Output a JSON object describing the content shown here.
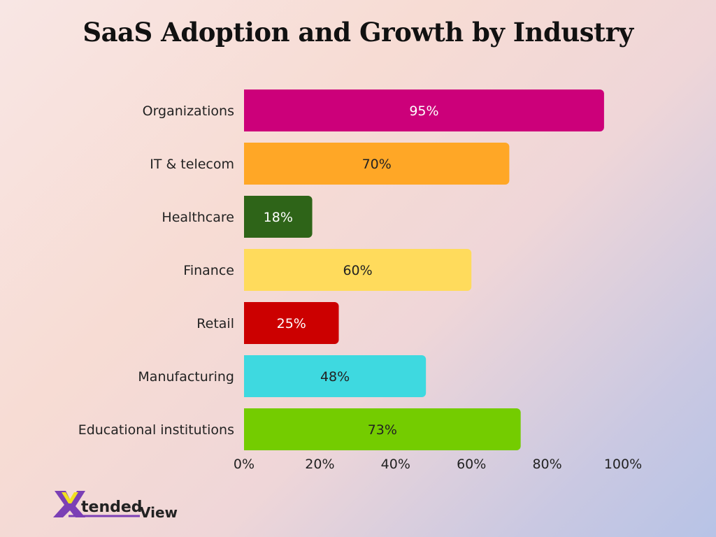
{
  "chart_data": {
    "type": "bar",
    "orientation": "horizontal",
    "title": "SaaS Adoption and Growth by Industry",
    "categories": [
      "Organizations",
      "IT & telecom",
      "Healthcare",
      "Finance",
      "Retail",
      "Manufacturing",
      "Educational institutions"
    ],
    "values": [
      95,
      70,
      18,
      60,
      25,
      48,
      73
    ],
    "data_labels": [
      "95%",
      "70%",
      "18%",
      "60%",
      "25%",
      "48%",
      "73%"
    ],
    "colors": [
      "#cc007a",
      "#ffa726",
      "#2e6418",
      "#ffdb5c",
      "#cc0000",
      "#3ed9e0",
      "#74cc00"
    ],
    "label_colors": [
      "#ffffff",
      "#222222",
      "#ffffff",
      "#222222",
      "#ffffff",
      "#222222",
      "#222222"
    ],
    "xlim": [
      0,
      100
    ],
    "x_ticks": [
      "0%",
      "20%",
      "40%",
      "60%",
      "80%",
      "100%"
    ],
    "x_tick_values": [
      0,
      20,
      40,
      60,
      80,
      100
    ],
    "xlabel": "",
    "ylabel": "",
    "grid": false,
    "legend": "none"
  },
  "branding": {
    "logo_text": "XtendedView",
    "logo_colors": [
      "#7b3fb5",
      "#f0e020"
    ]
  }
}
